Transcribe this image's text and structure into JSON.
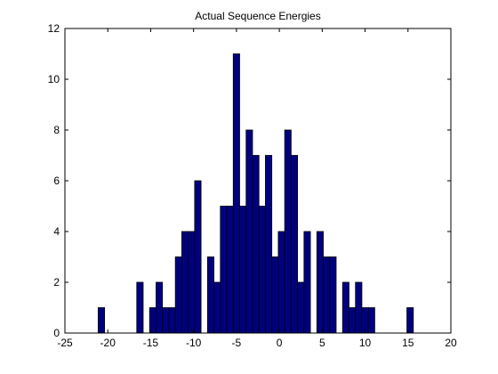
{
  "chart_data": {
    "type": "bar",
    "title": "Actual Sequence Energies",
    "xlabel": "",
    "ylabel": "",
    "xlim": [
      -25,
      20
    ],
    "ylim": [
      0,
      12
    ],
    "xticks": [
      -25,
      -20,
      -15,
      -10,
      -5,
      0,
      5,
      10,
      15,
      20
    ],
    "yticks": [
      0,
      2,
      4,
      6,
      8,
      10,
      12
    ],
    "grid": false,
    "bar_color": "#00007f",
    "edge_color": "#000000",
    "bin_width": 0.75,
    "bins": [
      {
        "x": -20.75,
        "count": 1
      },
      {
        "x": -16.25,
        "count": 2
      },
      {
        "x": -14.75,
        "count": 1
      },
      {
        "x": -14.0,
        "count": 2
      },
      {
        "x": -13.25,
        "count": 1
      },
      {
        "x": -12.5,
        "count": 1
      },
      {
        "x": -11.75,
        "count": 3
      },
      {
        "x": -11.0,
        "count": 4
      },
      {
        "x": -10.25,
        "count": 4
      },
      {
        "x": -9.5,
        "count": 6
      },
      {
        "x": -8.0,
        "count": 3
      },
      {
        "x": -7.25,
        "count": 2
      },
      {
        "x": -6.5,
        "count": 5
      },
      {
        "x": -5.75,
        "count": 5
      },
      {
        "x": -5.0,
        "count": 11
      },
      {
        "x": -4.25,
        "count": 5
      },
      {
        "x": -3.5,
        "count": 8
      },
      {
        "x": -2.75,
        "count": 7
      },
      {
        "x": -2.0,
        "count": 5
      },
      {
        "x": -1.25,
        "count": 7
      },
      {
        "x": -0.5,
        "count": 3
      },
      {
        "x": 0.25,
        "count": 4
      },
      {
        "x": 1.0,
        "count": 8
      },
      {
        "x": 1.75,
        "count": 7
      },
      {
        "x": 2.5,
        "count": 2
      },
      {
        "x": 3.25,
        "count": 4
      },
      {
        "x": 4.75,
        "count": 4
      },
      {
        "x": 5.5,
        "count": 3
      },
      {
        "x": 6.25,
        "count": 3
      },
      {
        "x": 7.75,
        "count": 2
      },
      {
        "x": 8.5,
        "count": 1
      },
      {
        "x": 9.25,
        "count": 2
      },
      {
        "x": 10.0,
        "count": 1
      },
      {
        "x": 10.75,
        "count": 1
      },
      {
        "x": 15.25,
        "count": 1
      }
    ]
  }
}
